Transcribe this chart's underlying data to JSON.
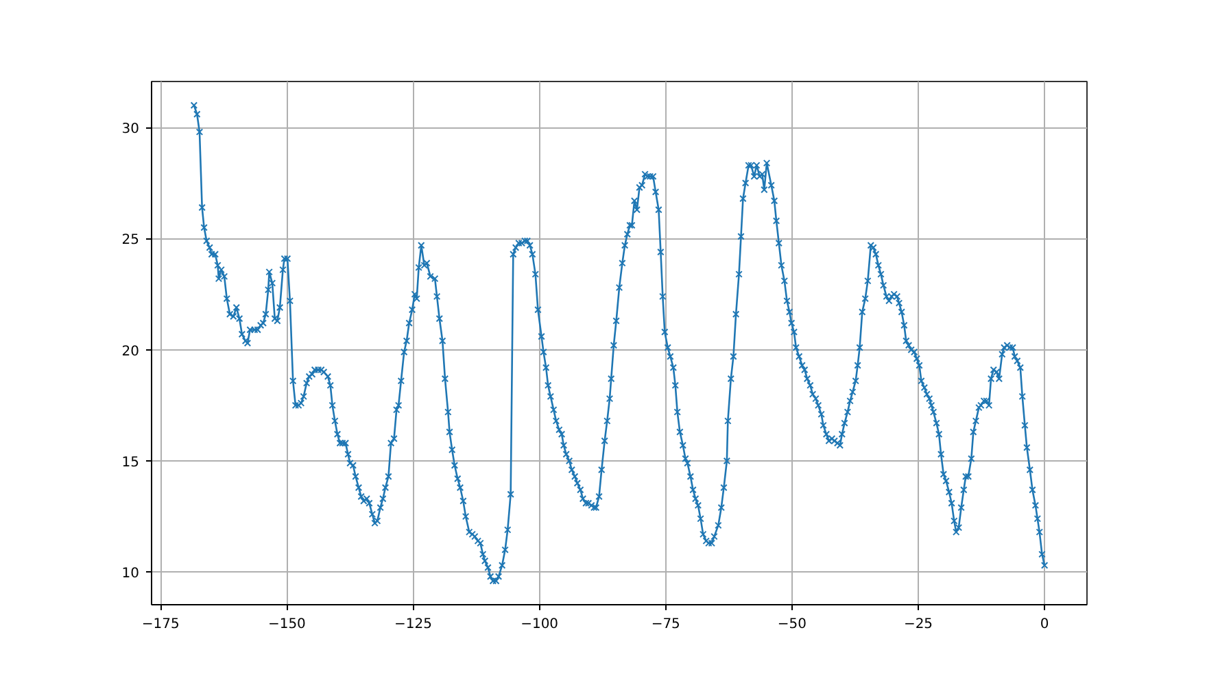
{
  "chart_data": {
    "type": "line",
    "marker": "cross",
    "grid": true,
    "line_style": "solid",
    "xlim": [
      -176.8,
      8.4
    ],
    "ylim": [
      8.53,
      32.07
    ],
    "xticks": [
      -175,
      -150,
      -125,
      -100,
      -75,
      -50,
      -25,
      0
    ],
    "yticks": [
      10,
      15,
      20,
      25,
      30
    ],
    "series": [
      {
        "color": "#1f77b4",
        "x": [
          -168.4,
          -167.8,
          -167.3,
          -166.8,
          -166.4,
          -165.9,
          -165.3,
          -164.9,
          -164.2,
          -163.7,
          -163.5,
          -163.0,
          -162.4,
          -161.9,
          -161.3,
          -160.6,
          -160.0,
          -159.4,
          -158.9,
          -158.2,
          -157.8,
          -157.3,
          -156.4,
          -155.8,
          -155.2,
          -154.7,
          -154.2,
          -153.7,
          -153.5,
          -152.9,
          -152.4,
          -151.9,
          -151.4,
          -150.8,
          -150.5,
          -149.9,
          -149.4,
          -148.8,
          -148.3,
          -147.7,
          -147.2,
          -146.7,
          -146.1,
          -145.6,
          -145.0,
          -144.5,
          -143.8,
          -143.2,
          -142.7,
          -141.9,
          -141.4,
          -141.0,
          -140.5,
          -140.0,
          -139.5,
          -139.0,
          -138.4,
          -137.9,
          -137.5,
          -136.9,
          -136.4,
          -135.8,
          -135.3,
          -134.8,
          -134.2,
          -133.7,
          -133.1,
          -132.6,
          -132.1,
          -131.5,
          -131.0,
          -130.5,
          -129.9,
          -129.4,
          -128.8,
          -128.3,
          -127.9,
          -127.4,
          -126.8,
          -126.3,
          -125.8,
          -125.2,
          -124.7,
          -124.3,
          -123.9,
          -123.4,
          -122.8,
          -122.3,
          -121.6,
          -120.7,
          -120.3,
          -119.8,
          -119.2,
          -118.7,
          -118.1,
          -117.8,
          -117.3,
          -116.8,
          -116.2,
          -115.7,
          -115.1,
          -114.6,
          -113.9,
          -113.3,
          -112.8,
          -112.2,
          -111.7,
          -111.2,
          -110.8,
          -110.2,
          -109.7,
          -109.2,
          -108.6,
          -108.1,
          -107.4,
          -106.8,
          -106.3,
          -105.7,
          -105.2,
          -104.7,
          -104.1,
          -103.5,
          -102.9,
          -102.4,
          -101.9,
          -101.4,
          -100.8,
          -100.3,
          -99.6,
          -99.2,
          -98.7,
          -98.3,
          -97.8,
          -97.2,
          -96.7,
          -96.1,
          -95.6,
          -95.2,
          -94.7,
          -94.1,
          -93.6,
          -93.0,
          -92.5,
          -91.9,
          -91.4,
          -90.8,
          -90.3,
          -89.7,
          -89.2,
          -88.8,
          -88.2,
          -87.7,
          -87.1,
          -86.6,
          -86.1,
          -85.8,
          -85.3,
          -84.8,
          -84.2,
          -83.6,
          -83.1,
          -82.6,
          -82.1,
          -81.7,
          -81.2,
          -80.7,
          -80.2,
          -79.7,
          -79.1,
          -78.6,
          -78.1,
          -77.5,
          -77.0,
          -76.4,
          -76.0,
          -75.6,
          -75.2,
          -74.6,
          -74.1,
          -73.5,
          -73.1,
          -72.7,
          -72.2,
          -71.6,
          -71.1,
          -70.7,
          -70.1,
          -69.6,
          -69.1,
          -68.6,
          -68.1,
          -67.6,
          -67.0,
          -66.5,
          -65.9,
          -65.4,
          -64.6,
          -64.0,
          -63.5,
          -62.9,
          -62.7,
          -62.1,
          -61.6,
          -61.1,
          -60.5,
          -60.1,
          -59.7,
          -59.2,
          -58.6,
          -58.1,
          -57.5,
          -57.0,
          -56.4,
          -55.9,
          -55.5,
          -55.0,
          -54.1,
          -53.5,
          -53.1,
          -52.6,
          -52.1,
          -51.5,
          -51.0,
          -50.5,
          -50.1,
          -49.6,
          -49.2,
          -48.6,
          -48.0,
          -47.5,
          -47.0,
          -46.4,
          -45.9,
          -45.3,
          -44.8,
          -44.2,
          -43.8,
          -43.2,
          -42.7,
          -42.1,
          -41.6,
          -41.0,
          -40.5,
          -40.1,
          -39.6,
          -39.0,
          -38.5,
          -38.0,
          -37.4,
          -37.0,
          -36.6,
          -36.1,
          -35.5,
          -35.0,
          -34.4,
          -33.9,
          -33.4,
          -32.9,
          -32.4,
          -31.9,
          -31.3,
          -30.8,
          -30.3,
          -29.8,
          -29.2,
          -28.8,
          -28.3,
          -27.8,
          -27.4,
          -26.9,
          -26.4,
          -25.8,
          -25.3,
          -24.8,
          -24.4,
          -23.8,
          -23.3,
          -22.8,
          -22.4,
          -22.0,
          -21.4,
          -20.9,
          -20.5,
          -20.0,
          -19.5,
          -18.9,
          -18.4,
          -17.9,
          -17.5,
          -17.0,
          -16.5,
          -16.0,
          -15.6,
          -15.1,
          -14.5,
          -14.1,
          -13.6,
          -13.0,
          -12.6,
          -12.0,
          -11.5,
          -11.0,
          -10.6,
          -10.1,
          -9.5,
          -9.0,
          -8.4,
          -8.0,
          -7.4,
          -6.9,
          -6.3,
          -5.9,
          -5.4,
          -4.8,
          -4.4,
          -3.9,
          -3.5,
          -2.9,
          -2.4,
          -1.8,
          -1.4,
          -1.0,
          -0.5,
          0.0
        ],
        "values": [
          31.0,
          30.6,
          29.8,
          26.4,
          25.5,
          24.9,
          24.6,
          24.3,
          24.3,
          23.8,
          23.2,
          23.6,
          23.3,
          22.3,
          21.6,
          21.5,
          21.9,
          21.4,
          20.7,
          20.4,
          20.3,
          20.9,
          20.9,
          20.9,
          21.1,
          21.2,
          21.6,
          22.7,
          23.5,
          23.0,
          21.4,
          21.3,
          21.9,
          23.6,
          24.1,
          24.1,
          22.2,
          18.6,
          17.5,
          17.5,
          17.6,
          17.9,
          18.5,
          18.8,
          18.9,
          19.1,
          19.1,
          19.1,
          19.0,
          18.8,
          18.4,
          17.5,
          16.8,
          16.2,
          15.8,
          15.8,
          15.8,
          15.3,
          14.9,
          14.8,
          14.3,
          13.8,
          13.4,
          13.2,
          13.3,
          13.1,
          12.6,
          12.2,
          12.3,
          12.9,
          13.3,
          13.8,
          14.3,
          15.8,
          16.0,
          17.3,
          17.5,
          18.6,
          19.9,
          20.4,
          21.2,
          21.8,
          22.5,
          22.3,
          23.7,
          24.7,
          23.8,
          23.9,
          23.3,
          23.2,
          22.4,
          21.4,
          20.4,
          18.7,
          17.2,
          16.3,
          15.5,
          14.8,
          14.2,
          13.8,
          13.2,
          12.5,
          11.8,
          11.7,
          11.6,
          11.4,
          11.3,
          10.8,
          10.5,
          10.2,
          9.8,
          9.6,
          9.6,
          9.8,
          10.3,
          11.0,
          11.9,
          13.5,
          24.3,
          24.6,
          24.8,
          24.8,
          24.9,
          24.9,
          24.7,
          24.3,
          23.4,
          21.8,
          20.6,
          19.9,
          19.2,
          18.4,
          17.9,
          17.3,
          16.8,
          16.4,
          16.2,
          15.7,
          15.3,
          15.0,
          14.6,
          14.3,
          14.0,
          13.7,
          13.3,
          13.1,
          13.1,
          13.0,
          12.9,
          12.9,
          13.4,
          14.6,
          15.9,
          16.8,
          17.8,
          18.7,
          20.2,
          21.3,
          22.8,
          23.9,
          24.7,
          25.2,
          25.6,
          25.6,
          26.7,
          26.3,
          27.3,
          27.4,
          27.9,
          27.8,
          27.8,
          27.8,
          27.1,
          26.3,
          24.4,
          22.4,
          20.8,
          20.1,
          19.7,
          19.2,
          18.4,
          17.2,
          16.3,
          15.7,
          15.1,
          14.9,
          14.3,
          13.7,
          13.3,
          13.0,
          12.4,
          11.7,
          11.4,
          11.3,
          11.3,
          11.6,
          12.1,
          12.9,
          13.8,
          15.0,
          16.8,
          18.7,
          19.7,
          21.6,
          23.4,
          25.1,
          26.8,
          27.5,
          28.3,
          28.3,
          27.8,
          28.3,
          27.8,
          27.9,
          27.2,
          28.4,
          27.4,
          26.7,
          25.8,
          24.8,
          23.8,
          23.1,
          22.2,
          21.7,
          21.2,
          20.8,
          20.1,
          19.7,
          19.3,
          19.1,
          18.7,
          18.4,
          18.0,
          17.8,
          17.5,
          17.1,
          16.6,
          16.2,
          15.9,
          16.0,
          15.9,
          15.8,
          15.7,
          16.2,
          16.7,
          17.2,
          17.7,
          18.1,
          18.6,
          19.3,
          20.1,
          21.7,
          22.3,
          23.1,
          24.7,
          24.6,
          24.3,
          23.8,
          23.4,
          22.9,
          22.4,
          22.2,
          22.4,
          22.5,
          22.4,
          22.1,
          21.7,
          21.1,
          20.4,
          20.2,
          20.0,
          19.9,
          19.6,
          19.3,
          18.6,
          18.3,
          18.0,
          17.8,
          17.5,
          17.2,
          16.7,
          16.2,
          15.3,
          14.4,
          14.1,
          13.6,
          13.1,
          12.3,
          11.8,
          12.0,
          12.9,
          13.7,
          14.3,
          14.3,
          15.1,
          16.3,
          16.8,
          17.4,
          17.5,
          17.7,
          17.7,
          17.5,
          18.7,
          19.1,
          19.0,
          18.7,
          19.8,
          20.1,
          20.2,
          20.1,
          20.1,
          19.7,
          19.5,
          19.2,
          17.9,
          16.6,
          15.6,
          14.6,
          13.7,
          13.0,
          12.4,
          11.8,
          10.8,
          10.3
        ]
      }
    ]
  }
}
